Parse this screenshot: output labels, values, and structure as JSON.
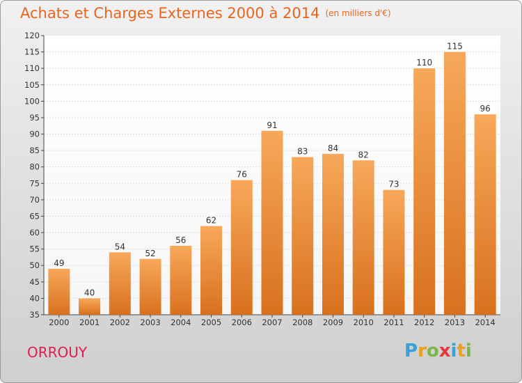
{
  "chart_data": {
    "type": "bar",
    "title": "Achats et Charges Externes 2000 à 2014",
    "subtitle": "(en milliers d'€)",
    "categories": [
      "2000",
      "2001",
      "2002",
      "2003",
      "2004",
      "2005",
      "2006",
      "2007",
      "2008",
      "2009",
      "2010",
      "2011",
      "2012",
      "2013",
      "2014"
    ],
    "values": [
      49,
      40,
      54,
      52,
      56,
      62,
      76,
      91,
      83,
      84,
      82,
      73,
      110,
      115,
      96
    ],
    "ylim": [
      35,
      120
    ],
    "yticks": [
      35,
      40,
      45,
      50,
      55,
      60,
      65,
      70,
      75,
      80,
      85,
      90,
      95,
      100,
      105,
      110,
      115,
      120
    ],
    "grid": true,
    "bar_color": "#f0923a",
    "data_labels": true
  },
  "footer": {
    "city": "ORROUY",
    "logo": [
      "P",
      "r",
      "o",
      "x",
      "i",
      "t",
      "i"
    ],
    "logo_colors": [
      "#3aa0d8",
      "#e8a020",
      "#7ab648",
      "#e23a3a",
      "#3aa0d8",
      "#e8a020",
      "#7ab648"
    ]
  },
  "colors": {
    "title": "#e8651e",
    "city": "#e21e50"
  }
}
